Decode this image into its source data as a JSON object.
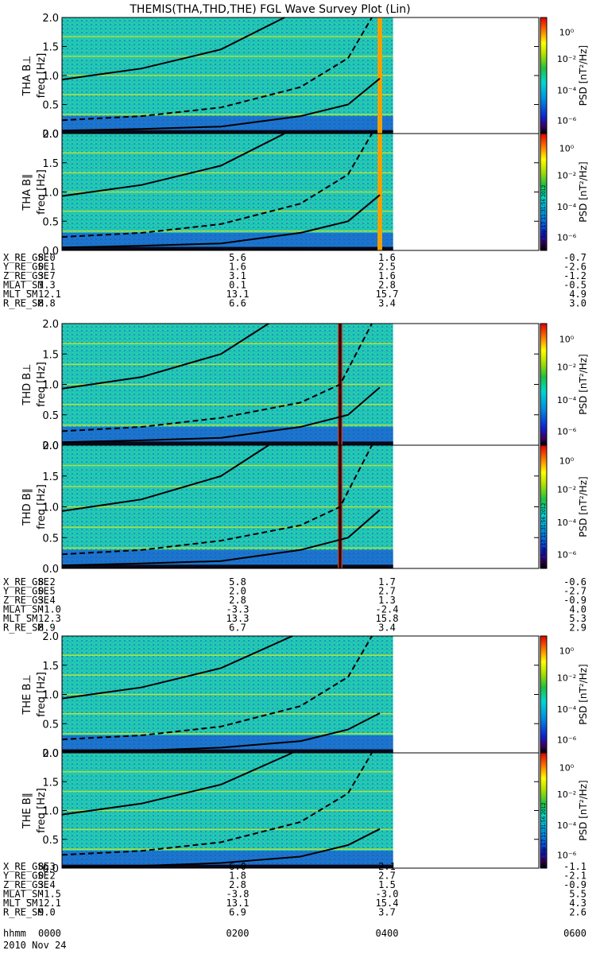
{
  "title": "THEMIS(THA,THD,THE) FGL Wave Survey Plot (Lin)",
  "time_labels": [
    "0000",
    "0200",
    "0400",
    "0600"
  ],
  "time_row_label": "hhmm",
  "date_label": "2010 Nov 24",
  "colorbar": {
    "label": "PSD [nT²/Hz]",
    "tick_labels": [
      "10⁰",
      "10⁻²",
      "10⁻⁴",
      "10⁻⁶"
    ],
    "stamp": "Mon Sep 17 11:31:56 2012"
  },
  "chart_data": [
    {
      "type": "heatmap",
      "probe": "THA",
      "component": "B⊥",
      "ylabel": "THA B⊥",
      "yunits": "freq [Hz]",
      "ylim": [
        0,
        2.0
      ],
      "yticks": [
        "0.0",
        "0.5",
        "1.0",
        "1.5",
        "2.0"
      ],
      "xlim": [
        "0000",
        "0600"
      ],
      "data_end": "0410",
      "bright_column": "0400",
      "spin_harmonics_hz": [
        0.33,
        0.67,
        1.0,
        1.33,
        1.67
      ],
      "gyro_curves": [
        {
          "style": "solid",
          "t": [
            0,
            1,
            2,
            2.8
          ],
          "f": [
            0.93,
            1.12,
            1.45,
            2.0
          ]
        },
        {
          "style": "dashed",
          "t": [
            0,
            1,
            2,
            3,
            3.6,
            3.9
          ],
          "f": [
            0.23,
            0.3,
            0.45,
            0.8,
            1.3,
            2.0
          ]
        },
        {
          "style": "solid",
          "t": [
            0,
            1,
            2,
            3,
            3.6,
            4.0
          ],
          "f": [
            0.05,
            0.08,
            0.12,
            0.3,
            0.5,
            0.95
          ]
        }
      ]
    },
    {
      "type": "heatmap",
      "probe": "THA",
      "component": "B∥",
      "ylabel": "THA B∥",
      "yunits": "freq [Hz]",
      "ylim": [
        0,
        2.0
      ],
      "yticks": [
        "0.0",
        "0.5",
        "1.0",
        "1.5",
        "2.0"
      ],
      "xlim": [
        "0000",
        "0600"
      ],
      "data_end": "0410",
      "bright_column": "0400",
      "spin_harmonics_hz": [
        0.33,
        0.67,
        1.0,
        1.33,
        1.67
      ],
      "gyro_curves": [
        {
          "style": "solid",
          "t": [
            0,
            1,
            2,
            2.8
          ],
          "f": [
            0.93,
            1.12,
            1.45,
            2.0
          ]
        },
        {
          "style": "dashed",
          "t": [
            0,
            1,
            2,
            3,
            3.6,
            3.9
          ],
          "f": [
            0.23,
            0.3,
            0.45,
            0.8,
            1.3,
            2.0
          ]
        },
        {
          "style": "solid",
          "t": [
            0,
            1,
            2,
            3,
            3.6,
            4.0
          ],
          "f": [
            0.05,
            0.08,
            0.12,
            0.3,
            0.5,
            0.95
          ]
        }
      ]
    },
    {
      "type": "heatmap",
      "probe": "THD",
      "component": "B⊥",
      "ylabel": "THD B⊥",
      "yunits": "freq [Hz]",
      "ylim": [
        0,
        2.0
      ],
      "yticks": [
        "0.0",
        "0.5",
        "1.0",
        "1.5",
        "2.0"
      ],
      "xlim": [
        "0000",
        "0600"
      ],
      "data_end": "0410",
      "bright_column": "0330",
      "spin_harmonics_hz": [
        0.33,
        0.67,
        1.0,
        1.33,
        1.67
      ],
      "gyro_curves": [
        {
          "style": "solid",
          "t": [
            0,
            1,
            2,
            2.6
          ],
          "f": [
            0.93,
            1.12,
            1.5,
            2.0
          ]
        },
        {
          "style": "dashed",
          "t": [
            0,
            1,
            2,
            3,
            3.5,
            3.9
          ],
          "f": [
            0.23,
            0.3,
            0.45,
            0.7,
            1.0,
            2.0
          ]
        },
        {
          "style": "solid",
          "t": [
            0,
            1,
            2,
            3,
            3.6,
            4.0
          ],
          "f": [
            0.05,
            0.08,
            0.12,
            0.3,
            0.5,
            0.95
          ]
        }
      ]
    },
    {
      "type": "heatmap",
      "probe": "THD",
      "component": "B∥",
      "ylabel": "THD B∥",
      "yunits": "freq [Hz]",
      "ylim": [
        0,
        2.0
      ],
      "yticks": [
        "0.0",
        "0.5",
        "1.0",
        "1.5",
        "2.0"
      ],
      "xlim": [
        "0000",
        "0600"
      ],
      "data_end": "0410",
      "bright_column": "0330",
      "spin_harmonics_hz": [
        0.33,
        0.67,
        1.0,
        1.33,
        1.67
      ],
      "gyro_curves": [
        {
          "style": "solid",
          "t": [
            0,
            1,
            2,
            2.6
          ],
          "f": [
            0.93,
            1.12,
            1.5,
            2.0
          ]
        },
        {
          "style": "dashed",
          "t": [
            0,
            1,
            2,
            3,
            3.5,
            3.9
          ],
          "f": [
            0.23,
            0.3,
            0.45,
            0.7,
            1.0,
            2.0
          ]
        },
        {
          "style": "solid",
          "t": [
            0,
            1,
            2,
            3,
            3.6,
            4.0
          ],
          "f": [
            0.05,
            0.08,
            0.12,
            0.3,
            0.5,
            0.95
          ]
        }
      ]
    },
    {
      "type": "heatmap",
      "probe": "THE",
      "component": "B⊥",
      "ylabel": "THE B⊥",
      "yunits": "freq [Hz]",
      "ylim": [
        0,
        2.0
      ],
      "yticks": [
        "0.0",
        "0.5",
        "1.0",
        "1.5",
        "2.0"
      ],
      "xlim": [
        "0000",
        "0600"
      ],
      "data_end": "0410",
      "bright_column": "",
      "spin_harmonics_hz": [
        0.33,
        0.67,
        1.0,
        1.33,
        1.67
      ],
      "gyro_curves": [
        {
          "style": "solid",
          "t": [
            0,
            1,
            2,
            2.9
          ],
          "f": [
            0.93,
            1.12,
            1.45,
            2.0
          ]
        },
        {
          "style": "dashed",
          "t": [
            0,
            1,
            2,
            3,
            3.6,
            3.9
          ],
          "f": [
            0.23,
            0.3,
            0.45,
            0.8,
            1.3,
            2.0
          ]
        },
        {
          "style": "solid",
          "t": [
            0,
            1,
            2,
            3,
            3.6,
            4.0
          ],
          "f": [
            0.02,
            0.04,
            0.09,
            0.2,
            0.4,
            0.68
          ]
        }
      ]
    },
    {
      "type": "heatmap",
      "probe": "THE",
      "component": "B∥",
      "ylabel": "THE B∥",
      "yunits": "freq [Hz]",
      "ylim": [
        0,
        2.0
      ],
      "yticks": [
        "0.0",
        "0.5",
        "1.0",
        "1.5",
        "2.0"
      ],
      "xlim": [
        "0000",
        "0600"
      ],
      "data_end": "0410",
      "bright_column": "",
      "spin_harmonics_hz": [
        0.33,
        0.67,
        1.0,
        1.33,
        1.67
      ],
      "gyro_curves": [
        {
          "style": "solid",
          "t": [
            0,
            1,
            2,
            2.9
          ],
          "f": [
            0.93,
            1.12,
            1.45,
            2.0
          ]
        },
        {
          "style": "dashed",
          "t": [
            0,
            1,
            2,
            3,
            3.6,
            3.9
          ],
          "f": [
            0.23,
            0.3,
            0.45,
            0.8,
            1.3,
            2.0
          ]
        },
        {
          "style": "solid",
          "t": [
            0,
            1,
            2,
            3,
            3.6,
            4.0
          ],
          "f": [
            0.02,
            0.04,
            0.09,
            0.2,
            0.4,
            0.68
          ]
        }
      ]
    }
  ],
  "ephemeris": [
    {
      "probe": "THA",
      "rows": [
        {
          "label": "X_RE_GSE",
          "values": [
            "8.0",
            "5.6",
            "1.6",
            "-0.7"
          ]
        },
        {
          "label": "Y_RE_GSE",
          "values": [
            "0.1",
            "1.6",
            "2.5",
            "-2.6"
          ]
        },
        {
          "label": "Z_RE_GSE",
          "values": [
            "3.7",
            "3.1",
            "1.6",
            "-1.2"
          ]
        },
        {
          "label": "MLAT_SM",
          "values": [
            "1.3",
            "0.1",
            "2.8",
            "-0.5"
          ]
        },
        {
          "label": "MLT_SM",
          "values": [
            "12.1",
            "13.1",
            "15.7",
            "4.9"
          ]
        },
        {
          "label": "R_RE_SM",
          "values": [
            "8.8",
            "6.6",
            "3.4",
            "3.0"
          ]
        }
      ]
    },
    {
      "probe": "THD",
      "rows": [
        {
          "label": "X_RE_GSE",
          "values": [
            "8.2",
            "5.8",
            "1.7",
            "-0.6"
          ]
        },
        {
          "label": "Y_RE_GSE",
          "values": [
            "0.5",
            "2.0",
            "2.7",
            "-2.7"
          ]
        },
        {
          "label": "Z_RE_GSE",
          "values": [
            "3.4",
            "2.8",
            "1.3",
            "-0.9"
          ]
        },
        {
          "label": "MLAT_SM",
          "values": [
            "-1.0",
            "-3.3",
            "-2.4",
            "4.0"
          ]
        },
        {
          "label": "MLT_SM",
          "values": [
            "12.3",
            "13.3",
            "15.8",
            "5.3"
          ]
        },
        {
          "label": "R_RE_SM",
          "values": [
            "8.9",
            "6.7",
            "3.4",
            "2.9"
          ]
        }
      ]
    },
    {
      "probe": "THE",
      "rows": [
        {
          "label": "X_RE_GSE",
          "values": [
            "8.3",
            "6.0",
            "2.1",
            "-1.1"
          ]
        },
        {
          "label": "Y_RE_GSE",
          "values": [
            "0.2",
            "1.8",
            "2.7",
            "-2.1"
          ]
        },
        {
          "label": "Z_RE_GSE",
          "values": [
            "3.4",
            "2.8",
            "1.5",
            "-0.9"
          ]
        },
        {
          "label": "MLAT_SM",
          "values": [
            "-1.5",
            "-3.8",
            "-3.0",
            "5.5"
          ]
        },
        {
          "label": "MLT_SM",
          "values": [
            "12.1",
            "13.1",
            "15.4",
            "4.3"
          ]
        },
        {
          "label": "R_RE_SM",
          "values": [
            "9.0",
            "6.9",
            "3.7",
            "2.6"
          ]
        }
      ]
    }
  ]
}
